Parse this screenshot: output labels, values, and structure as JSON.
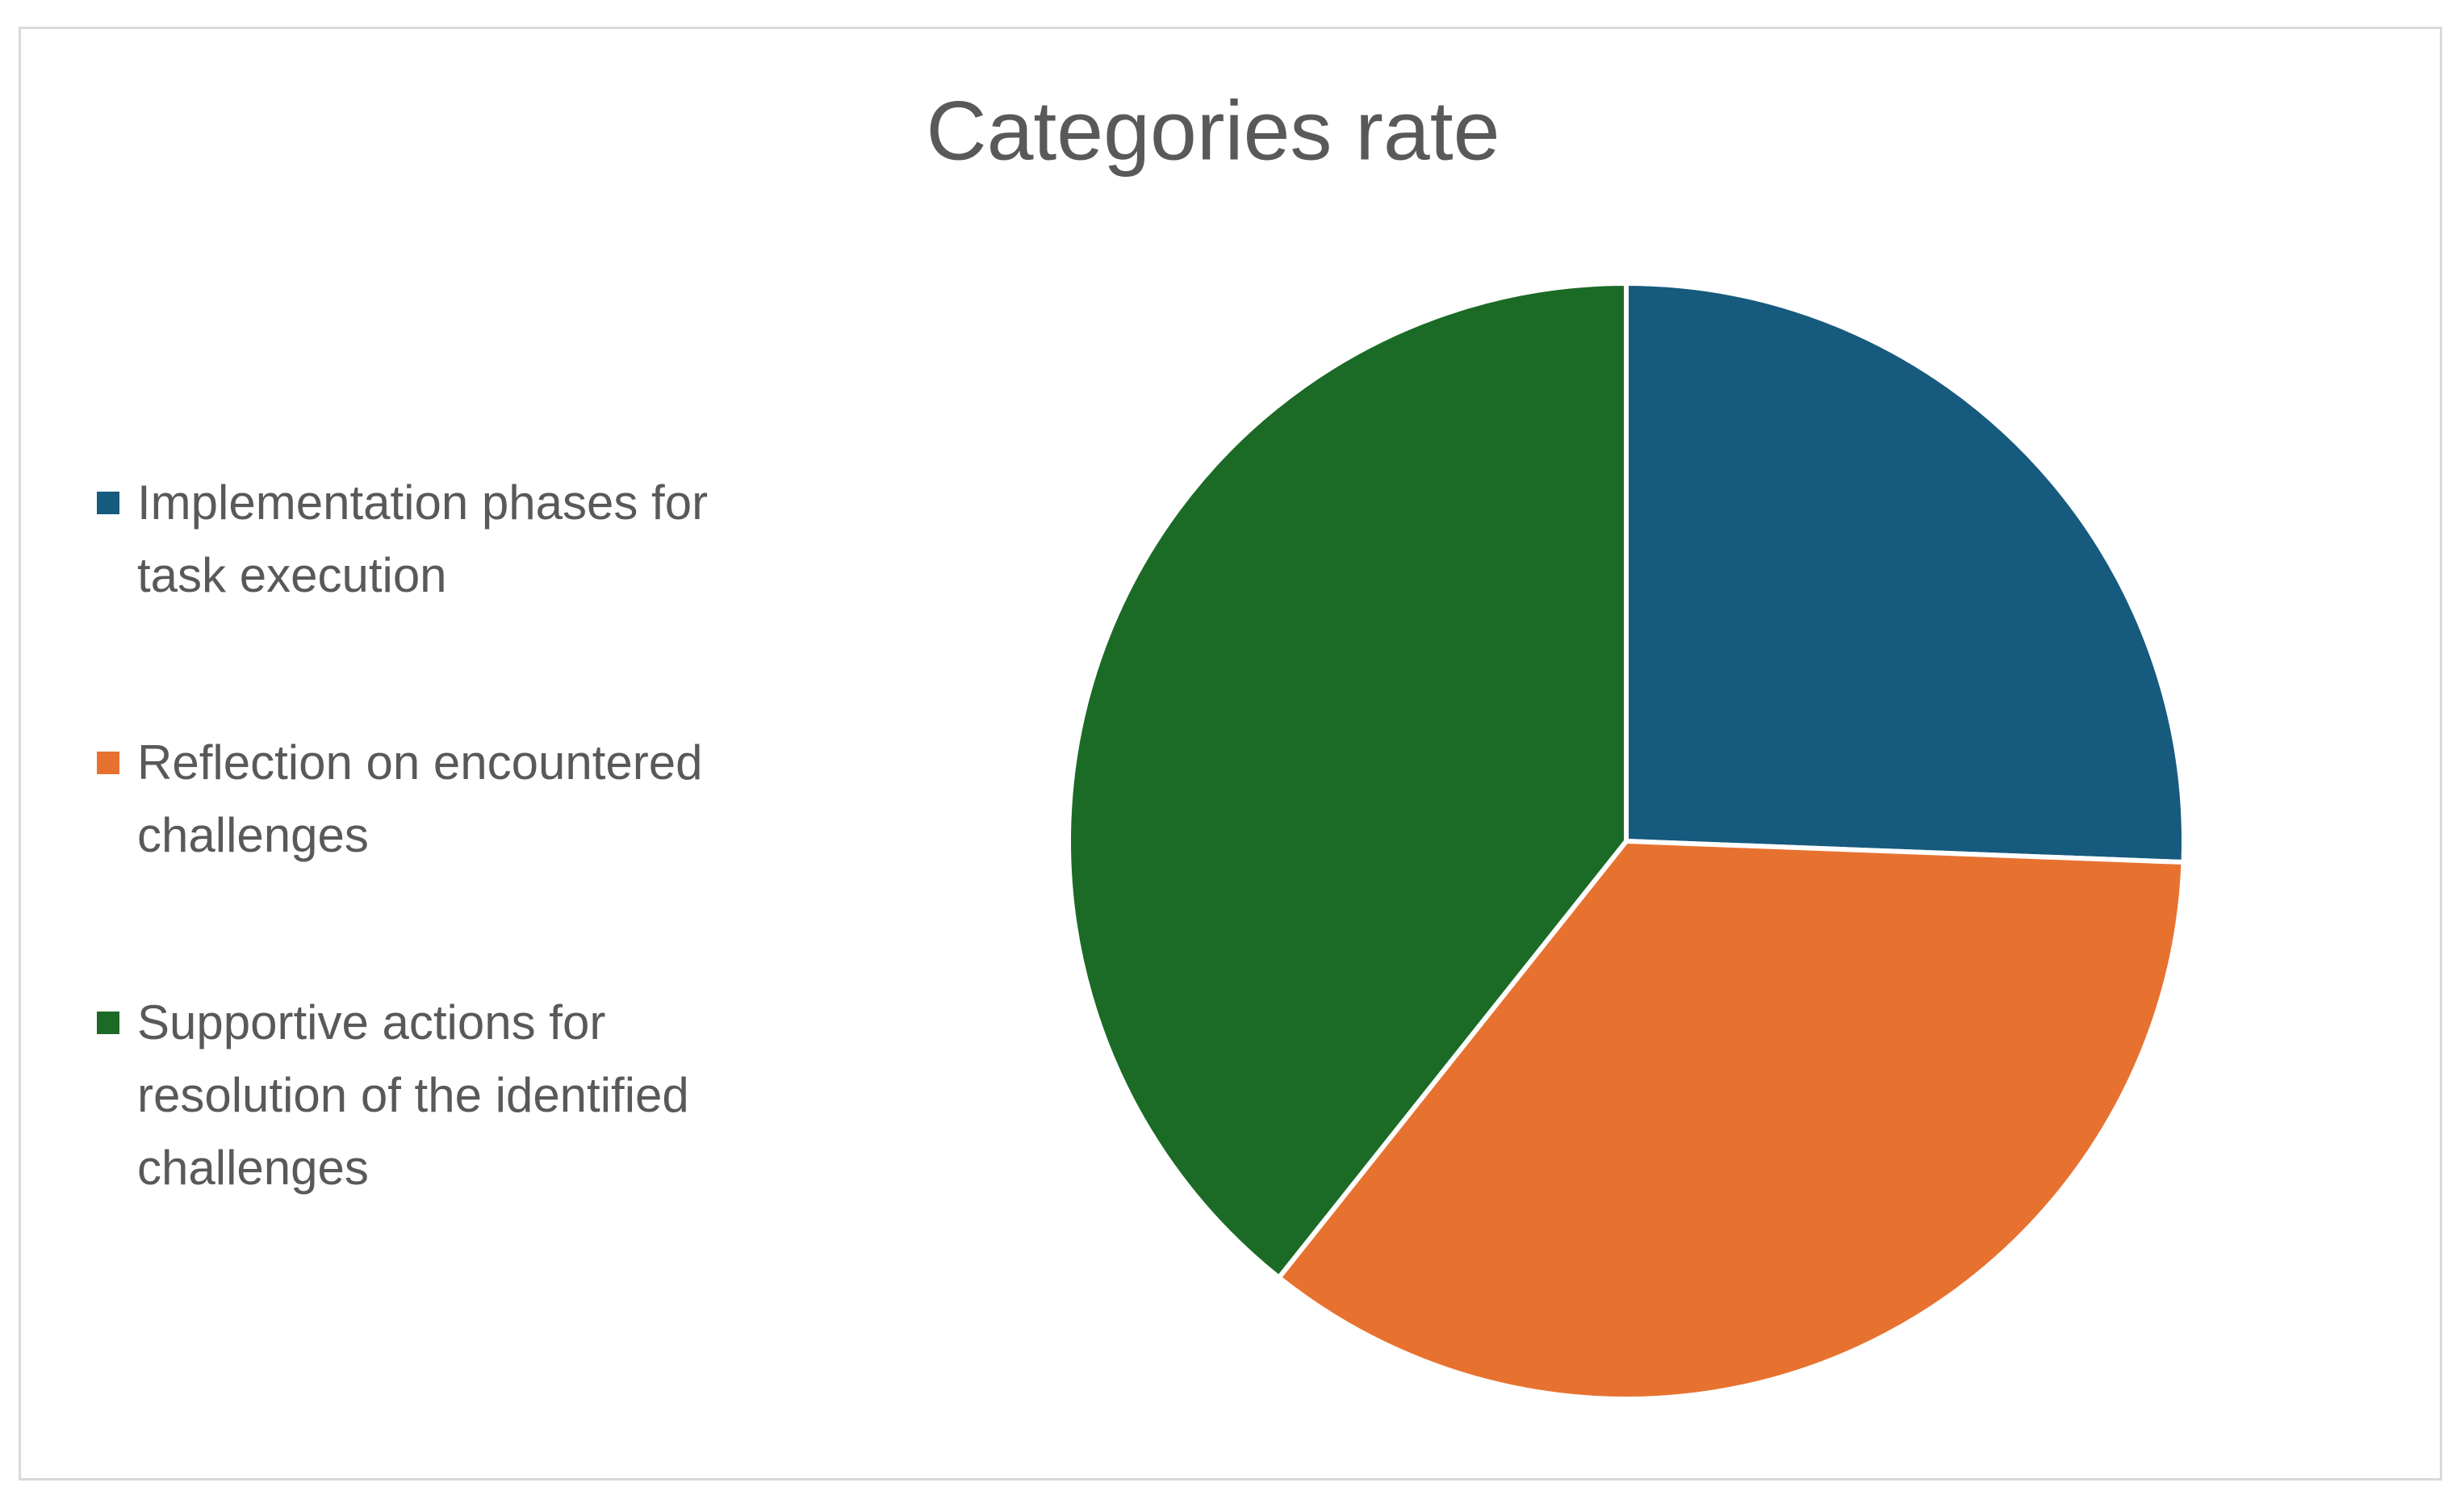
{
  "chart_data": {
    "type": "pie",
    "title": "Categories rate",
    "categories": [
      "Implementation phases for task execution",
      "Reflection on encountered challenges",
      "Supportive actions for resolution of the identified challenges"
    ],
    "values": [
      25.6,
      35.1,
      39.3
    ],
    "colors": [
      "#165a7e",
      "#e77230",
      "#1b6b26"
    ],
    "legend": "left"
  }
}
